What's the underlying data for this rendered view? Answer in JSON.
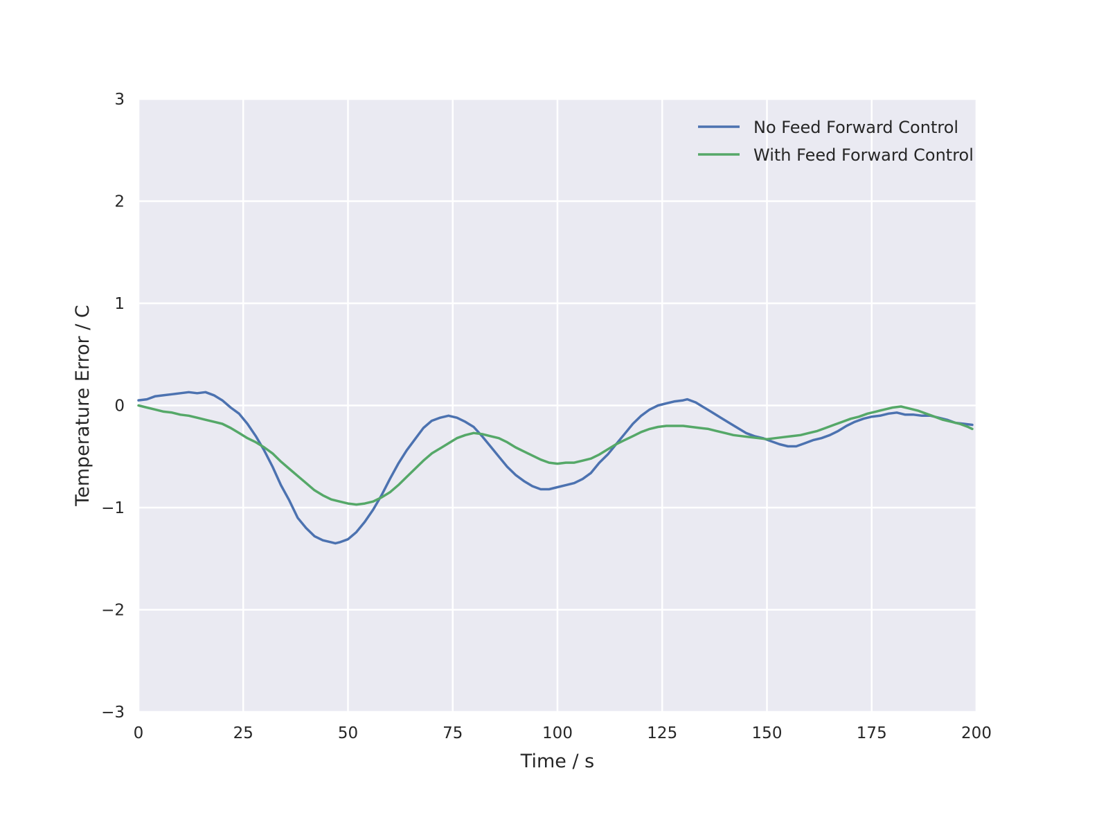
{
  "chart_data": {
    "type": "line",
    "xlabel": "Time / s",
    "ylabel": "Temperature Error / C",
    "xlim": [
      0,
      200
    ],
    "ylim": [
      -3,
      3
    ],
    "xticks": [
      0,
      25,
      50,
      75,
      100,
      125,
      150,
      175,
      200
    ],
    "yticks": [
      -3,
      -2,
      -1,
      0,
      1,
      2,
      3
    ],
    "ytick_labels": [
      "−3",
      "−2",
      "−1",
      "0",
      "1",
      "2",
      "3"
    ],
    "grid": true,
    "legend_position": "top-right",
    "background_color": "#eaeaf2",
    "grid_color": "#ffffff",
    "series": [
      {
        "name": "No Feed Forward Control",
        "color": "#4c72b0",
        "x": [
          0,
          2,
          4,
          6,
          8,
          10,
          12,
          14,
          16,
          18,
          20,
          22,
          24,
          26,
          28,
          30,
          32,
          34,
          36,
          38,
          40,
          42,
          44,
          46,
          47,
          48,
          50,
          52,
          54,
          56,
          58,
          60,
          62,
          64,
          66,
          68,
          70,
          72,
          74,
          76,
          78,
          80,
          82,
          84,
          86,
          88,
          90,
          92,
          94,
          96,
          98,
          100,
          102,
          104,
          106,
          108,
          110,
          112,
          114,
          116,
          118,
          120,
          122,
          124,
          126,
          128,
          130,
          131,
          133,
          135,
          137,
          139,
          141,
          143,
          145,
          147,
          149,
          151,
          153,
          155,
          157,
          159,
          161,
          163,
          165,
          167,
          169,
          171,
          173,
          175,
          177,
          179,
          181,
          183,
          185,
          187,
          189,
          191,
          193,
          195,
          197,
          199
        ],
        "y": [
          0.05,
          0.06,
          0.09,
          0.1,
          0.11,
          0.12,
          0.13,
          0.12,
          0.13,
          0.1,
          0.05,
          -0.02,
          -0.08,
          -0.18,
          -0.3,
          -0.44,
          -0.6,
          -0.78,
          -0.93,
          -1.1,
          -1.2,
          -1.28,
          -1.32,
          -1.34,
          -1.35,
          -1.34,
          -1.31,
          -1.24,
          -1.14,
          -1.02,
          -0.88,
          -0.72,
          -0.57,
          -0.44,
          -0.33,
          -0.22,
          -0.15,
          -0.12,
          -0.1,
          -0.12,
          -0.16,
          -0.21,
          -0.3,
          -0.4,
          -0.5,
          -0.6,
          -0.68,
          -0.74,
          -0.79,
          -0.82,
          -0.82,
          -0.8,
          -0.78,
          -0.76,
          -0.72,
          -0.66,
          -0.56,
          -0.48,
          -0.38,
          -0.28,
          -0.18,
          -0.1,
          -0.04,
          0.0,
          0.02,
          0.04,
          0.05,
          0.06,
          0.03,
          -0.02,
          -0.07,
          -0.12,
          -0.17,
          -0.22,
          -0.27,
          -0.3,
          -0.32,
          -0.35,
          -0.38,
          -0.4,
          -0.4,
          -0.37,
          -0.34,
          -0.32,
          -0.29,
          -0.25,
          -0.2,
          -0.16,
          -0.13,
          -0.11,
          -0.1,
          -0.08,
          -0.07,
          -0.09,
          -0.09,
          -0.1,
          -0.1,
          -0.12,
          -0.14,
          -0.17,
          -0.18,
          -0.19
        ]
      },
      {
        "name": "With Feed Forward Control",
        "color": "#55a868",
        "x": [
          0,
          2,
          4,
          6,
          8,
          10,
          12,
          14,
          16,
          18,
          20,
          22,
          24,
          26,
          28,
          30,
          32,
          34,
          36,
          38,
          40,
          42,
          44,
          46,
          48,
          50,
          52,
          54,
          56,
          58,
          60,
          62,
          64,
          66,
          68,
          70,
          72,
          74,
          76,
          78,
          80,
          82,
          84,
          86,
          88,
          90,
          92,
          94,
          96,
          98,
          100,
          102,
          104,
          106,
          108,
          110,
          112,
          114,
          116,
          118,
          120,
          122,
          124,
          126,
          128,
          130,
          132,
          134,
          136,
          138,
          140,
          142,
          144,
          146,
          148,
          150,
          152,
          154,
          156,
          158,
          160,
          162,
          164,
          166,
          168,
          170,
          172,
          174,
          176,
          178,
          180,
          182,
          184,
          186,
          188,
          190,
          192,
          194,
          196,
          198,
          199
        ],
        "y": [
          0.0,
          -0.02,
          -0.04,
          -0.06,
          -0.07,
          -0.09,
          -0.1,
          -0.12,
          -0.14,
          -0.16,
          -0.18,
          -0.22,
          -0.27,
          -0.32,
          -0.36,
          -0.41,
          -0.47,
          -0.55,
          -0.62,
          -0.69,
          -0.76,
          -0.83,
          -0.88,
          -0.92,
          -0.94,
          -0.96,
          -0.97,
          -0.96,
          -0.94,
          -0.9,
          -0.85,
          -0.78,
          -0.7,
          -0.62,
          -0.54,
          -0.47,
          -0.42,
          -0.37,
          -0.32,
          -0.29,
          -0.27,
          -0.28,
          -0.3,
          -0.32,
          -0.36,
          -0.41,
          -0.45,
          -0.49,
          -0.53,
          -0.56,
          -0.57,
          -0.56,
          -0.56,
          -0.54,
          -0.52,
          -0.48,
          -0.43,
          -0.38,
          -0.34,
          -0.3,
          -0.26,
          -0.23,
          -0.21,
          -0.2,
          -0.2,
          -0.2,
          -0.21,
          -0.22,
          -0.23,
          -0.25,
          -0.27,
          -0.29,
          -0.3,
          -0.31,
          -0.32,
          -0.33,
          -0.32,
          -0.31,
          -0.3,
          -0.29,
          -0.27,
          -0.25,
          -0.22,
          -0.19,
          -0.16,
          -0.13,
          -0.11,
          -0.08,
          -0.06,
          -0.04,
          -0.02,
          -0.01,
          -0.03,
          -0.05,
          -0.08,
          -0.11,
          -0.14,
          -0.16,
          -0.18,
          -0.21,
          -0.23
        ]
      }
    ]
  }
}
